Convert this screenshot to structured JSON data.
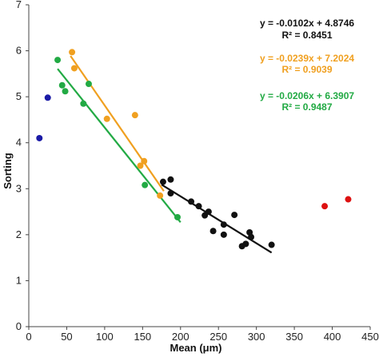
{
  "chart_data": {
    "type": "scatter",
    "title": "",
    "xlabel": "Mean (μm)",
    "ylabel": "Sorting",
    "xlim": [
      0,
      450
    ],
    "ylim": [
      0,
      7
    ],
    "xticks": [
      "0",
      "50",
      "100",
      "150",
      "200",
      "250",
      "300",
      "350",
      "400",
      "450"
    ],
    "yticks": [
      "0",
      "1",
      "2",
      "3",
      "4",
      "5",
      "6",
      "7"
    ],
    "grid": false,
    "legend": "none",
    "series": [
      {
        "color": "#1a1aa6",
        "points": [
          [
            14,
            4.1
          ],
          [
            25,
            4.98
          ]
        ]
      },
      {
        "color": "#f0a020",
        "points": [
          [
            57,
            5.97
          ],
          [
            60,
            5.62
          ],
          [
            103,
            4.52
          ],
          [
            140,
            4.6
          ],
          [
            147,
            3.5
          ],
          [
            152,
            3.6
          ],
          [
            173,
            2.85
          ]
        ],
        "fit": {
          "slope": -0.0239,
          "intercept": 7.2024,
          "x_range": [
            55,
            178
          ]
        }
      },
      {
        "color": "#22aa44",
        "points": [
          [
            38,
            5.8
          ],
          [
            44,
            5.25
          ],
          [
            48,
            5.12
          ],
          [
            72,
            4.85
          ],
          [
            79,
            5.28
          ],
          [
            153,
            3.08
          ],
          [
            196,
            2.38
          ]
        ],
        "fit": {
          "slope": -0.0206,
          "intercept": 6.3907,
          "x_range": [
            38,
            200
          ]
        }
      },
      {
        "color": "#111111",
        "points": [
          [
            177,
            3.15
          ],
          [
            187,
            3.2
          ],
          [
            187,
            2.9
          ],
          [
            214,
            2.72
          ],
          [
            224,
            2.62
          ],
          [
            232,
            2.42
          ],
          [
            237,
            2.5
          ],
          [
            243,
            2.08
          ],
          [
            257,
            2.22
          ],
          [
            257,
            2.0
          ],
          [
            271,
            2.43
          ],
          [
            281,
            1.75
          ],
          [
            286,
            1.8
          ],
          [
            291,
            2.05
          ],
          [
            293,
            1.95
          ],
          [
            320,
            1.78
          ]
        ],
        "fit": {
          "slope": -0.0102,
          "intercept": 4.8746,
          "x_range": [
            175,
            320
          ]
        }
      },
      {
        "color": "#dd1111",
        "points": [
          [
            390,
            2.62
          ],
          [
            421,
            2.77
          ]
        ]
      }
    ],
    "annotations": [
      {
        "eq": "y = -0.0102x + 4.8746",
        "r2": "R² = 0.8451",
        "color": "#111111"
      },
      {
        "eq": "y = -0.0239x + 7.2024",
        "r2": "R² = 0.9039",
        "color": "#f0a020"
      },
      {
        "eq": "y = -0.0206x + 6.3907",
        "r2": "R² = 0.9487",
        "color": "#22aa44"
      }
    ]
  }
}
